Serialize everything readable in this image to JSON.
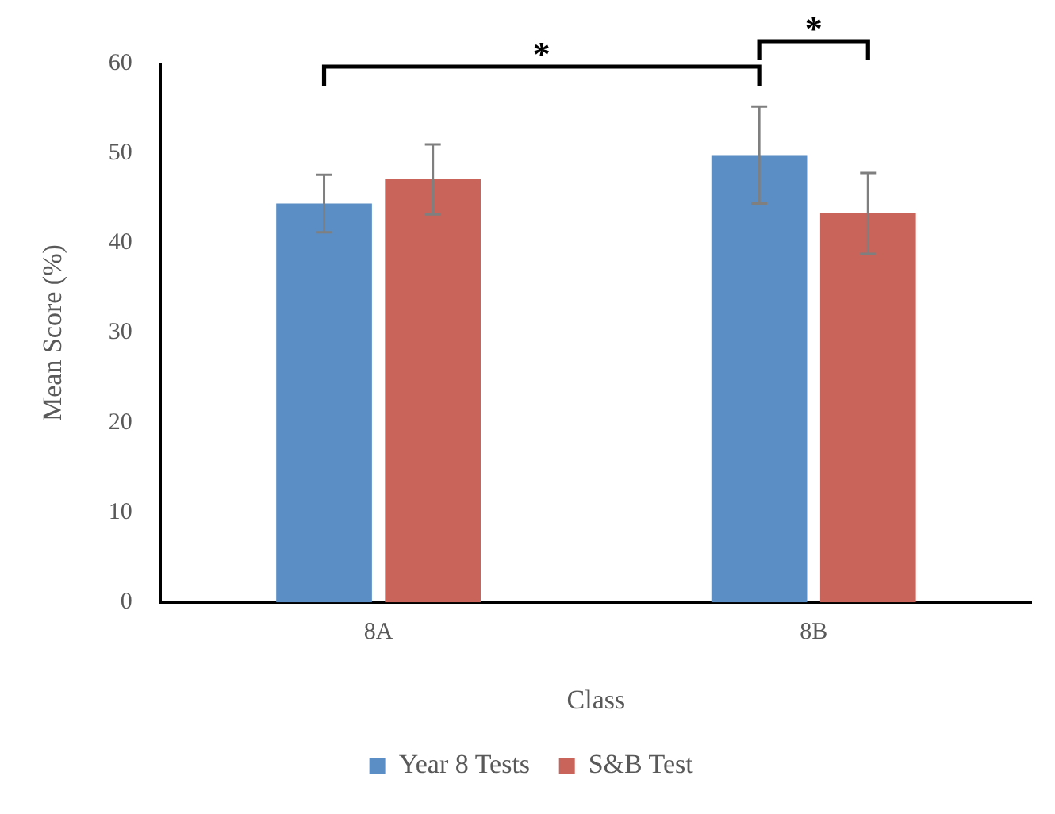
{
  "chart_data": {
    "type": "bar",
    "xlabel": "Class",
    "ylabel": "Mean Score (%)",
    "categories": [
      "8A",
      "8B"
    ],
    "series": [
      {
        "name": "Year 8 Tests",
        "color": "#5b8ec5",
        "values": [
          44.4,
          49.8
        ],
        "errors": [
          3.2,
          5.4
        ]
      },
      {
        "name": "S&B Test",
        "color": "#c9645a",
        "values": [
          47.1,
          43.3
        ],
        "errors": [
          3.9,
          4.5
        ]
      }
    ],
    "ylim": [
      0,
      60
    ],
    "yticks": [
      0,
      10,
      20,
      30,
      40,
      50,
      60
    ],
    "grid": false,
    "legend": "bottom",
    "annotations": [
      "*",
      "*"
    ]
  }
}
